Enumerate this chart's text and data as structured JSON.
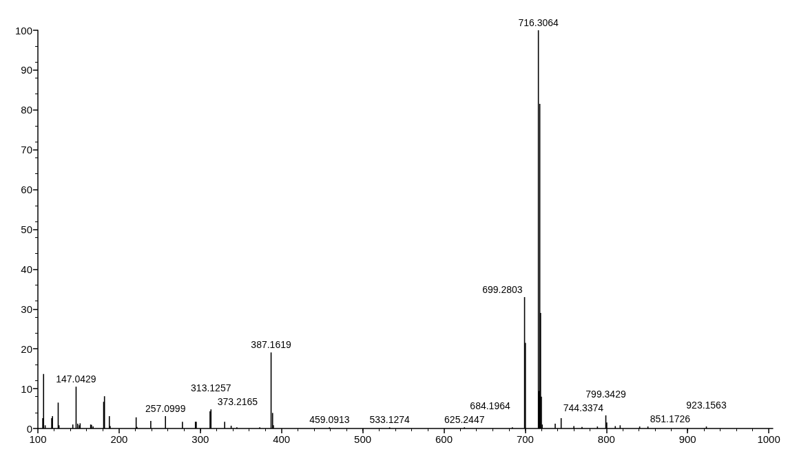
{
  "chart_data": {
    "type": "bar",
    "color": "#000000",
    "x": [
      106,
      107,
      109,
      117,
      118,
      125,
      126,
      143,
      147.0429,
      149,
      151,
      152,
      165,
      166,
      168,
      181,
      182,
      188,
      189,
      221,
      222,
      239,
      257.0999,
      278,
      294,
      295,
      312,
      313.1257,
      330,
      338,
      345,
      373.2165,
      387.1619,
      389,
      390,
      459.0913,
      533.1274,
      625.2447,
      684.1964,
      699.2803,
      700.3,
      716.3064,
      717,
      718,
      719,
      720,
      721,
      737,
      744.3374,
      760,
      770,
      789,
      799.3429,
      800.5,
      811,
      817,
      841,
      851.1726,
      923.1563
    ],
    "values": [
      2.6,
      13.7,
      0.8,
      2.6,
      3.1,
      6.5,
      0.8,
      1.0,
      10.5,
      1.2,
      0.8,
      1.3,
      1.0,
      0.9,
      0.5,
      6.7,
      8.1,
      3.1,
      0.6,
      2.8,
      0.4,
      1.9,
      3.1,
      1.7,
      1.7,
      1.7,
      4.3,
      4.8,
      1.7,
      0.7,
      0.3,
      0.3,
      19.1,
      3.9,
      0.8,
      0.3,
      0.3,
      0.3,
      0.3,
      33,
      21.5,
      100,
      9.4,
      81.5,
      29,
      8,
      1.0,
      1.2,
      2.6,
      0.6,
      0.4,
      0.5,
      3.3,
      1.5,
      0.6,
      0.8,
      0.5,
      0.5,
      0.5
    ],
    "xlim": [
      100,
      1005
    ],
    "xticks": [
      100,
      200,
      300,
      400,
      500,
      600,
      700,
      800,
      900,
      1000
    ],
    "ylim": [
      0,
      100
    ],
    "yticks": [
      0,
      10,
      20,
      30,
      40,
      50,
      60,
      70,
      80,
      90,
      100
    ],
    "annotations": [
      {
        "text": "147.0429",
        "x": 147.0429,
        "y": 10.5
      },
      {
        "text": "257.0999",
        "x": 257.0999,
        "y": 3.1
      },
      {
        "text": "313.1257",
        "x": 313.1257,
        "y": 4.8
      },
      {
        "text": "373.2165",
        "x": 373.2165,
        "y": 0.3
      },
      {
        "text": "387.1619",
        "x": 387.1619,
        "y": 19.1
      },
      {
        "text": "459.0913",
        "x": 459.0913,
        "y": 0.3
      },
      {
        "text": "533.1274",
        "x": 533.1274,
        "y": 0.3
      },
      {
        "text": "625.2447",
        "x": 625.2447,
        "y": 0.3
      },
      {
        "text": "684.1964",
        "x": 684.1964,
        "y": 0.3
      },
      {
        "text": "699.2803",
        "x": 699.2803,
        "y": 33
      },
      {
        "text": "716.3064",
        "x": 716.3064,
        "y": 100
      },
      {
        "text": "744.3374",
        "x": 744.3374,
        "y": 2.6
      },
      {
        "text": "799.3429",
        "x": 799.3429,
        "y": 3.3
      },
      {
        "text": "851.1726",
        "x": 851.1726,
        "y": 0.5
      },
      {
        "text": "923.1563",
        "x": 923.1563,
        "y": 0.5
      }
    ]
  }
}
